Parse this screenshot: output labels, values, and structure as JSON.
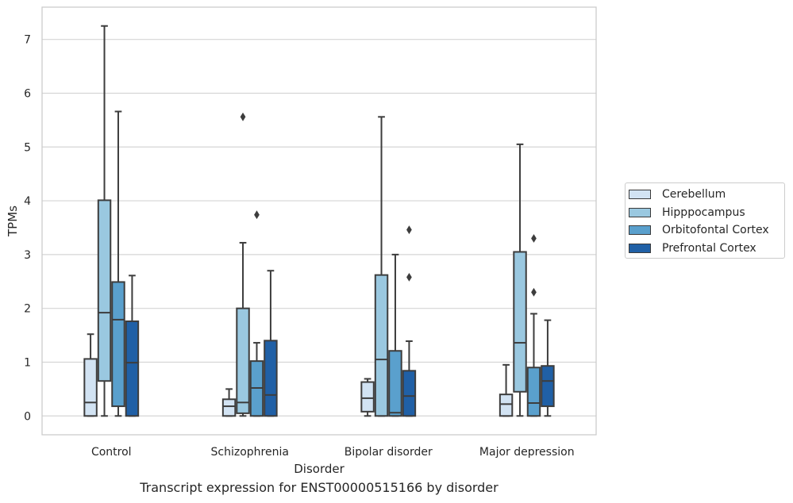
{
  "caption": "Transcript expression for ENST00000515166 by disorder",
  "chart_data": {
    "type": "box",
    "xlabel": "Disorder",
    "ylabel": "TPMs",
    "ylim": [
      -0.35,
      7.6
    ],
    "yticks": [
      0,
      1,
      2,
      3,
      4,
      5,
      6,
      7
    ],
    "grid": "horizontal",
    "legend_position": "right",
    "categories": [
      "Control",
      "Schizophrenia",
      "Bipolar disorder",
      "Major depression"
    ],
    "series": [
      {
        "name": "Cerebellum",
        "color": "#d2e3f3",
        "boxes": [
          {
            "whislo": 0.0,
            "q1": 0.0,
            "med": 0.25,
            "q3": 1.06,
            "whishi": 1.52,
            "fliers": []
          },
          {
            "whislo": 0.0,
            "q1": 0.0,
            "med": 0.18,
            "q3": 0.31,
            "whishi": 0.5,
            "fliers": []
          },
          {
            "whislo": 0.0,
            "q1": 0.08,
            "med": 0.33,
            "q3": 0.63,
            "whishi": 0.69,
            "fliers": []
          },
          {
            "whislo": 0.0,
            "q1": 0.0,
            "med": 0.22,
            "q3": 0.4,
            "whishi": 0.95,
            "fliers": []
          }
        ]
      },
      {
        "name": "Hipppocampus",
        "color": "#9ac8e0",
        "boxes": [
          {
            "whislo": 0.0,
            "q1": 0.65,
            "med": 1.92,
            "q3": 4.01,
            "whishi": 7.25,
            "fliers": []
          },
          {
            "whislo": 0.0,
            "q1": 0.05,
            "med": 0.25,
            "q3": 2.0,
            "whishi": 3.22,
            "fliers": [
              5.56
            ]
          },
          {
            "whislo": 0.0,
            "q1": 0.0,
            "med": 1.05,
            "q3": 2.62,
            "whishi": 5.56,
            "fliers": []
          },
          {
            "whislo": 0.0,
            "q1": 0.45,
            "med": 1.36,
            "q3": 3.05,
            "whishi": 5.05,
            "fliers": []
          }
        ]
      },
      {
        "name": "Orbitofontal Cortex",
        "color": "#5aa0cd",
        "boxes": [
          {
            "whislo": 0.0,
            "q1": 0.18,
            "med": 1.79,
            "q3": 2.49,
            "whishi": 5.66,
            "fliers": []
          },
          {
            "whislo": 0.0,
            "q1": 0.0,
            "med": 0.52,
            "q3": 1.02,
            "whishi": 1.36,
            "fliers": [
              3.74
            ]
          },
          {
            "whislo": 0.0,
            "q1": 0.0,
            "med": 0.06,
            "q3": 1.21,
            "whishi": 3.0,
            "fliers": []
          },
          {
            "whislo": 0.0,
            "q1": 0.0,
            "med": 0.24,
            "q3": 0.9,
            "whishi": 1.9,
            "fliers": [
              2.3,
              3.3
            ]
          }
        ]
      },
      {
        "name": "Prefrontal Cortex",
        "color": "#2060a6",
        "boxes": [
          {
            "whislo": 0.0,
            "q1": 0.0,
            "med": 0.99,
            "q3": 1.76,
            "whishi": 2.61,
            "fliers": []
          },
          {
            "whislo": 0.0,
            "q1": 0.0,
            "med": 0.39,
            "q3": 1.4,
            "whishi": 2.7,
            "fliers": []
          },
          {
            "whislo": 0.0,
            "q1": 0.0,
            "med": 0.37,
            "q3": 0.84,
            "whishi": 1.39,
            "fliers": [
              2.58,
              3.46
            ]
          },
          {
            "whislo": 0.0,
            "q1": 0.18,
            "med": 0.65,
            "q3": 0.93,
            "whishi": 1.78,
            "fliers": []
          }
        ]
      }
    ]
  }
}
